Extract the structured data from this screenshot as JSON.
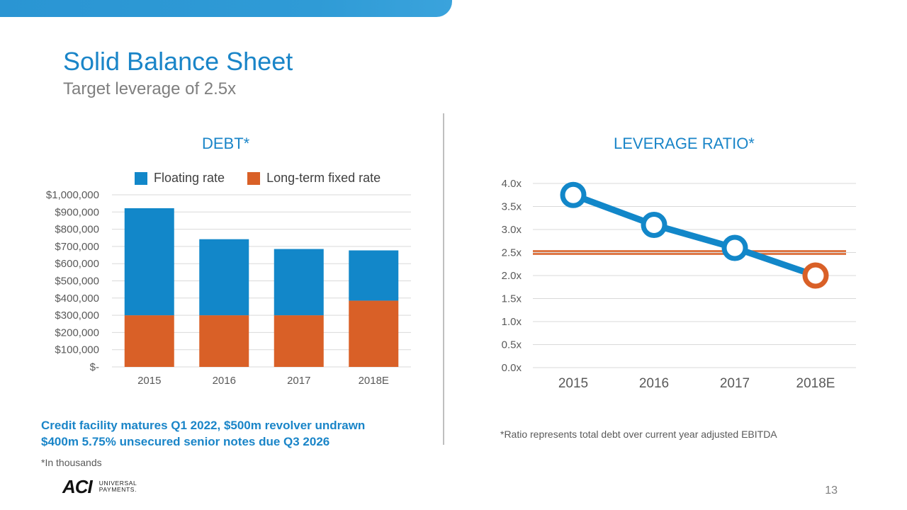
{
  "header": {
    "title": "Solid Balance Sheet",
    "subtitle": "Target leverage of 2.5x"
  },
  "chart_data": [
    {
      "type": "bar",
      "stacked": true,
      "title": "DEBT*",
      "categories": [
        "2015",
        "2016",
        "2017",
        "2018E"
      ],
      "series": [
        {
          "name": "Long-term fixed rate",
          "color": "#d96027",
          "values": [
            300000,
            300000,
            300000,
            385000
          ]
        },
        {
          "name": "Floating rate",
          "color": "#1287c9",
          "values": [
            622000,
            442000,
            385000,
            292000
          ]
        }
      ],
      "ylim": [
        0,
        1000000
      ],
      "y_ticks": [
        {
          "value": 0,
          "label": "$-"
        },
        {
          "value": 100000,
          "label": "$100,000"
        },
        {
          "value": 200000,
          "label": "$200,000"
        },
        {
          "value": 300000,
          "label": "$300,000"
        },
        {
          "value": 400000,
          "label": "$400,000"
        },
        {
          "value": 500000,
          "label": "$500,000"
        },
        {
          "value": 600000,
          "label": "$600,000"
        },
        {
          "value": 700000,
          "label": "$700,000"
        },
        {
          "value": 800000,
          "label": "$800,000"
        },
        {
          "value": 900000,
          "label": "$900,000"
        },
        {
          "value": 1000000,
          "label": "$1,000,000"
        }
      ],
      "legend": [
        {
          "label": "Floating rate",
          "color": "#1287c9"
        },
        {
          "label": "Long-term fixed rate",
          "color": "#d96027"
        }
      ],
      "grid": true,
      "xlabel": "",
      "ylabel": ""
    },
    {
      "type": "line",
      "title": "LEVERAGE RATIO*",
      "categories": [
        "2015",
        "2016",
        "2017",
        "2018E"
      ],
      "series": [
        {
          "name": "Leverage ratio",
          "color": "#1287c9",
          "values": [
            3.75,
            3.1,
            2.6,
            2.0
          ],
          "highlight_last_color": "#d96027"
        }
      ],
      "target_line": {
        "value": 2.5,
        "color": "#d96027"
      },
      "ylim": [
        0,
        4
      ],
      "y_ticks": [
        {
          "value": 0,
          "label": "0.0x"
        },
        {
          "value": 0.5,
          "label": "0.5x"
        },
        {
          "value": 1,
          "label": "1.0x"
        },
        {
          "value": 1.5,
          "label": "1.5x"
        },
        {
          "value": 2,
          "label": "2.0x"
        },
        {
          "value": 2.5,
          "label": "2.5x"
        },
        {
          "value": 3,
          "label": "3.0x"
        },
        {
          "value": 3.5,
          "label": "3.5x"
        },
        {
          "value": 4,
          "label": "4.0x"
        }
      ],
      "grid": true,
      "xlabel": "",
      "ylabel": ""
    }
  ],
  "notes": {
    "credit_line1": "Credit facility matures Q1 2022, $500m revolver undrawn",
    "credit_line2": "$400m 5.75% unsecured senior notes due Q3 2026",
    "in_thousands": "*In thousands",
    "ratio_note": "*Ratio represents total debt over current year adjusted EBITDA"
  },
  "logo": {
    "mark": "ACI",
    "line1": "UNIVERSAL",
    "line2": "PAYMENTS."
  },
  "page_number": "13"
}
